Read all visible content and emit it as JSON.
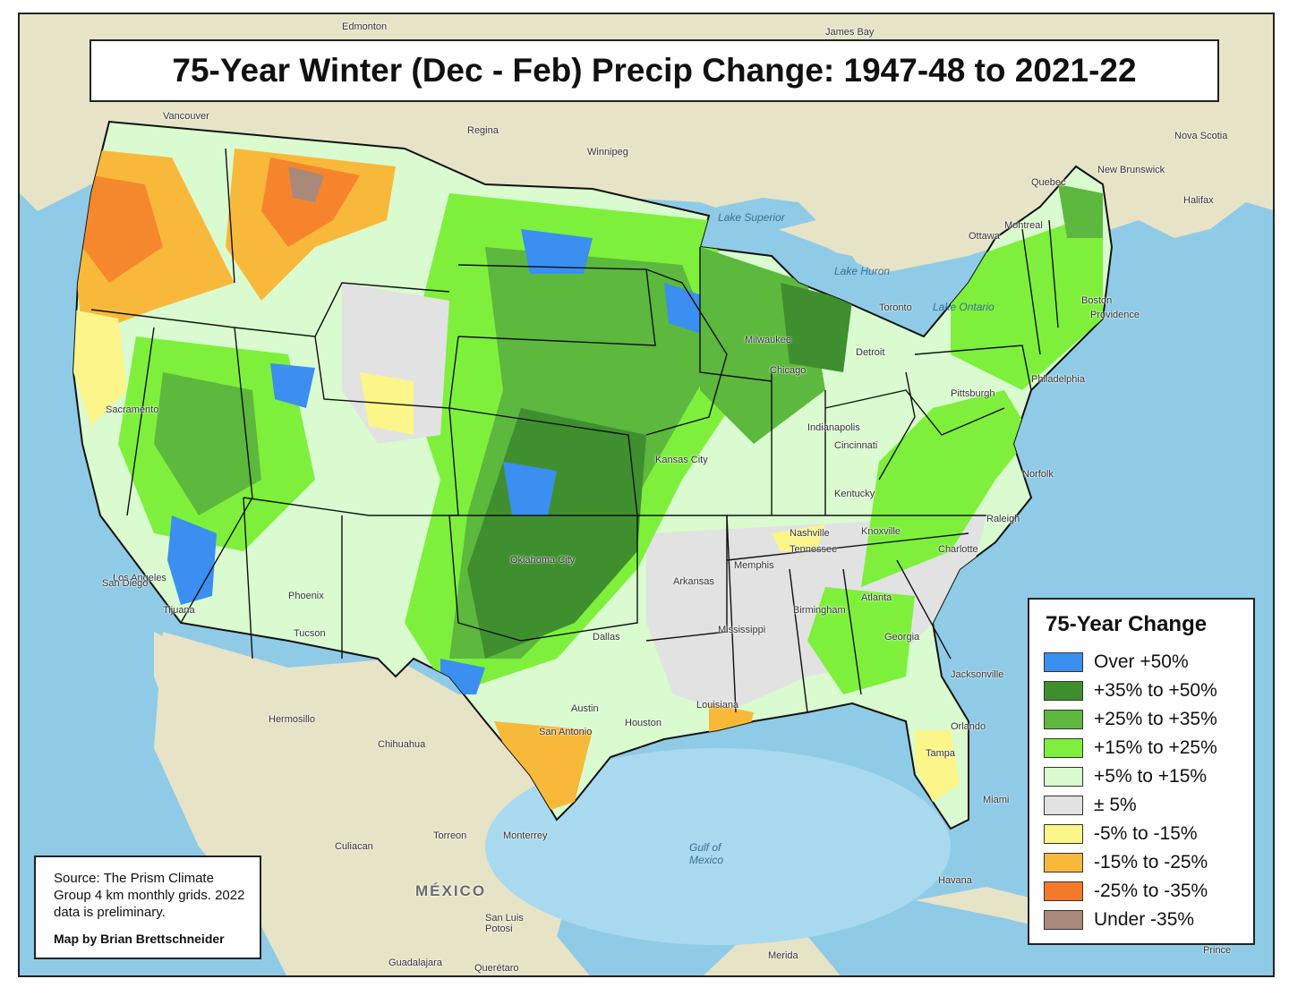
{
  "title": "75-Year Winter (Dec - Feb) Precip Change: 1947-48  to 2021-22",
  "legend": {
    "title": "75-Year Change",
    "items": [
      {
        "label": "Over +50%",
        "color": "#3a8ff0"
      },
      {
        "label": "+35% to +50%",
        "color": "#3f8f2f"
      },
      {
        "label": "+25% to +35%",
        "color": "#5db83e"
      },
      {
        "label": "+15% to +25%",
        "color": "#7ef03c"
      },
      {
        "label": "+5% to +15%",
        "color": "#d9fbcf"
      },
      {
        "label": "± 5%",
        "color": "#e2e2e2"
      },
      {
        "label": "-5% to -15%",
        "color": "#fbf58a"
      },
      {
        "label": "-15% to -25%",
        "color": "#f8b93a"
      },
      {
        "label": "-25% to -35%",
        "color": "#f47a2b"
      },
      {
        "label": "Under -35%",
        "color": "#a8897a"
      }
    ]
  },
  "source": {
    "text": "Source: The Prism Climate Group 4 km monthly grids. 2022 data is preliminary.",
    "credit": "Map by Brian Brettschneider"
  },
  "places": {
    "edmonton": "Edmonton",
    "james_bay": "James Bay",
    "vancouver": "Vancouver",
    "regina": "Regina",
    "winnipeg": "Winnipeg",
    "quebec": "Quebec",
    "new_brunswick": "New Brunswick",
    "nova_scotia": "Nova Scotia",
    "halifax": "Halifax",
    "ottawa": "Ottawa",
    "montreal": "Montreal",
    "lake_superior": "Lake Superior",
    "lake_huron": "Lake Huron",
    "toronto": "Toronto",
    "lake_ontario": "Lake Ontario",
    "milwaukee": "Milwaukee",
    "chicago": "Chicago",
    "detroit": "Detroit",
    "boston": "Boston",
    "providence": "Providence",
    "philadelphia": "Philadelphia",
    "pittsburgh": "Pittsburgh",
    "indianapolis": "Indianapolis",
    "cincinnati": "Cincinnati",
    "kentucky": "Kentucky",
    "norfolk": "Norfolk",
    "raleigh": "Raleigh",
    "nashville": "Nashville",
    "knoxville": "Knoxville",
    "charlotte": "Charlotte",
    "memphis": "Memphis",
    "atlanta": "Atlanta",
    "birmingham": "Birmingham",
    "jacksonville": "Jacksonville",
    "orlando": "Orlando",
    "tampa": "Tampa",
    "miami": "Miami",
    "havana": "Havana",
    "gulf_of_mexico": "Gulf of Mexico",
    "oklahoma_city": "Oklahoma City",
    "kansas_city": "Kansas City",
    "dallas": "Dallas",
    "austin": "Austin",
    "san_antonio": "San Antonio",
    "houston": "Houston",
    "louisiana": "Louisiana",
    "arkansas": "Arkansas",
    "mississippi": "Mississippi",
    "georgia": "Georgia",
    "tennessee": "Tennessee",
    "los_angeles": "Los Angeles",
    "san_diego": "San Diego",
    "tijuana": "Tijuana",
    "phoenix": "Phoenix",
    "tucson": "Tucson",
    "sacramento": "Sacramento",
    "hermosillo": "Hermosillo",
    "chihuahua": "Chihuahua",
    "culiacan": "Culiacan",
    "torreon": "Torreon",
    "monterrey": "Monterrey",
    "mexico": "MÉXICO",
    "san_luis_potosi": "San Luis Potosi",
    "guadalajara": "Guadalajara",
    "queretaro": "Querétaro",
    "merida": "Merida",
    "prince": "Prince"
  }
}
